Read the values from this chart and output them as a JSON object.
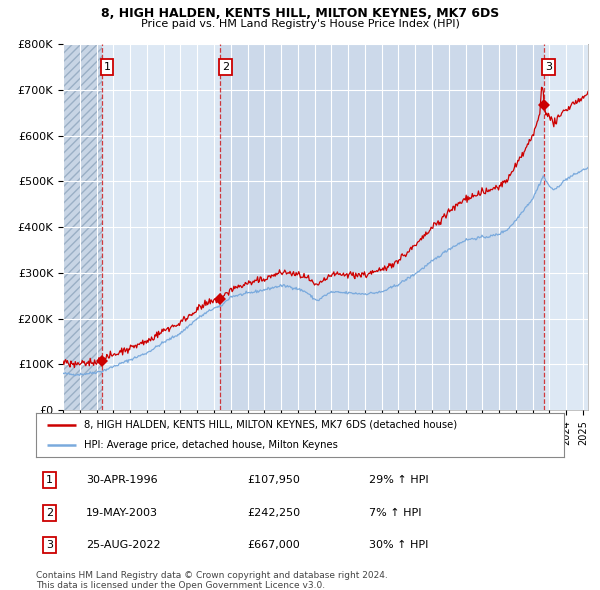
{
  "title1": "8, HIGH HALDEN, KENTS HILL, MILTON KEYNES, MK7 6DS",
  "title2": "Price paid vs. HM Land Registry's House Price Index (HPI)",
  "legend1": "8, HIGH HALDEN, KENTS HILL, MILTON KEYNES, MK7 6DS (detached house)",
  "legend2": "HPI: Average price, detached house, Milton Keynes",
  "transactions": [
    {
      "num": 1,
      "date": "30-APR-1996",
      "year": 1996.33,
      "price": 107950,
      "pct": "29% ↑ HPI"
    },
    {
      "num": 2,
      "date": "19-MAY-2003",
      "year": 2003.38,
      "price": 242250,
      "pct": "7% ↑ HPI"
    },
    {
      "num": 3,
      "date": "25-AUG-2022",
      "year": 2022.65,
      "price": 667000,
      "pct": "30% ↑ HPI"
    }
  ],
  "footnote1": "Contains HM Land Registry data © Crown copyright and database right 2024.",
  "footnote2": "This data is licensed under the Open Government Licence v3.0.",
  "hpi_color": "#7aaadd",
  "price_color": "#cc0000",
  "plot_bg_color": "#dde8f4",
  "ylim": [
    0,
    800000
  ],
  "yticks": [
    0,
    100000,
    200000,
    300000,
    400000,
    500000,
    600000,
    700000,
    800000
  ],
  "ytick_labels": [
    "£0",
    "£100K",
    "£200K",
    "£300K",
    "£400K",
    "£500K",
    "£600K",
    "£700K",
    "£800K"
  ],
  "xmin": 1994.0,
  "xmax": 2025.3
}
